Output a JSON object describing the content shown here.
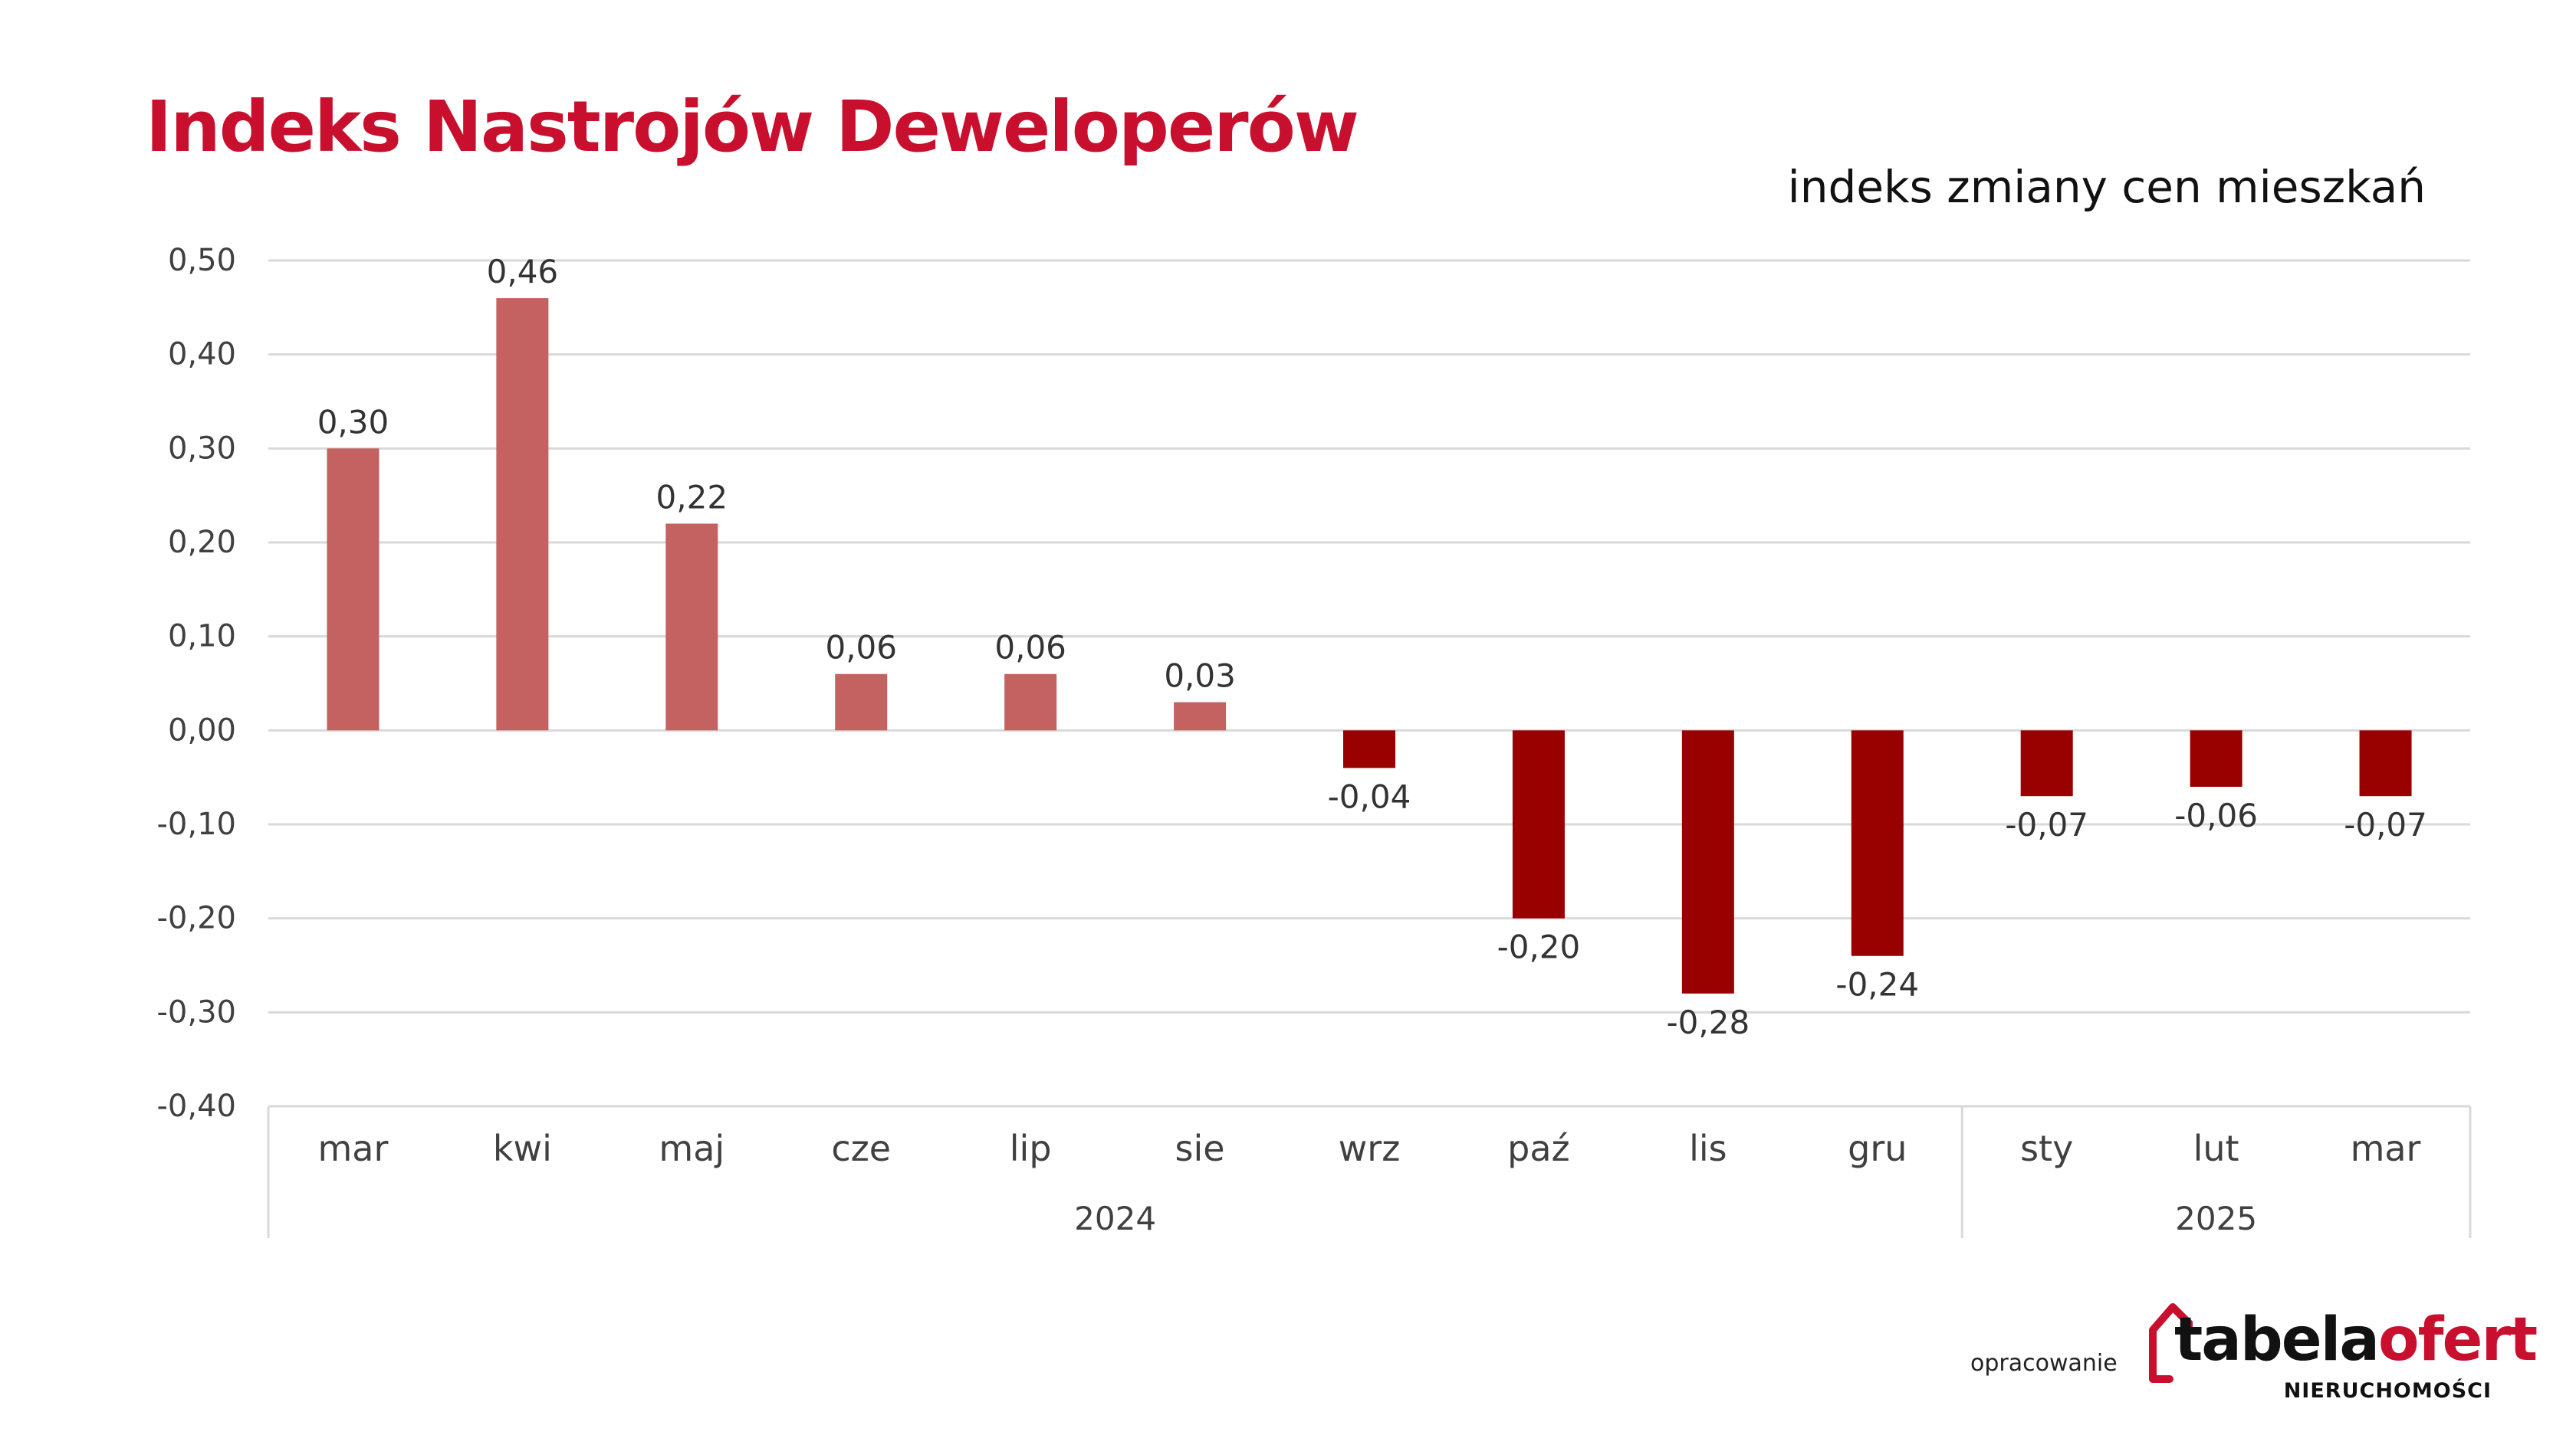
{
  "title": "Indeks Nastrojów Deweloperów",
  "subtitle": "indeks zmiany cen mieszkań",
  "footer": {
    "credit": "opracowanie",
    "logo_part1": "tabela",
    "logo_part2": "ofert",
    "logo_tagline": "NIERUCHOMOŚCI"
  },
  "colors": {
    "title": "#c8102e",
    "positive_bar": "#c46262",
    "negative_bar": "#990000",
    "gridline": "#d9d9d9",
    "axis_text": "#404040"
  },
  "chart_data": {
    "type": "bar",
    "categories": [
      "mar",
      "kwi",
      "maj",
      "cze",
      "lip",
      "sie",
      "wrz",
      "paź",
      "lis",
      "gru",
      "sty",
      "lut",
      "mar"
    ],
    "values": [
      0.3,
      0.46,
      0.22,
      0.06,
      0.06,
      0.03,
      -0.04,
      -0.2,
      -0.28,
      -0.24,
      -0.07,
      -0.06,
      -0.07
    ],
    "value_labels": [
      "0,30",
      "0,46",
      "0,22",
      "0,06",
      "0,06",
      "0,03",
      "-0,04",
      "-0,20",
      "-0,28",
      "-0,24",
      "-0,07",
      "-0,06",
      "-0,07"
    ],
    "groups": [
      {
        "label": "2024",
        "count": 10
      },
      {
        "label": "2025",
        "count": 3
      }
    ],
    "ylim": [
      -0.4,
      0.5
    ],
    "yticks": [
      0.5,
      0.4,
      0.3,
      0.2,
      0.1,
      0.0,
      -0.1,
      -0.2,
      -0.3,
      -0.4
    ],
    "ytick_labels": [
      "0,50",
      "0,40",
      "0,30",
      "0,20",
      "0,10",
      "0,00",
      "-0,10",
      "-0,20",
      "-0,30",
      "-0,40"
    ],
    "title": "",
    "xlabel": "",
    "ylabel": "",
    "grid": true,
    "legend": "none"
  }
}
